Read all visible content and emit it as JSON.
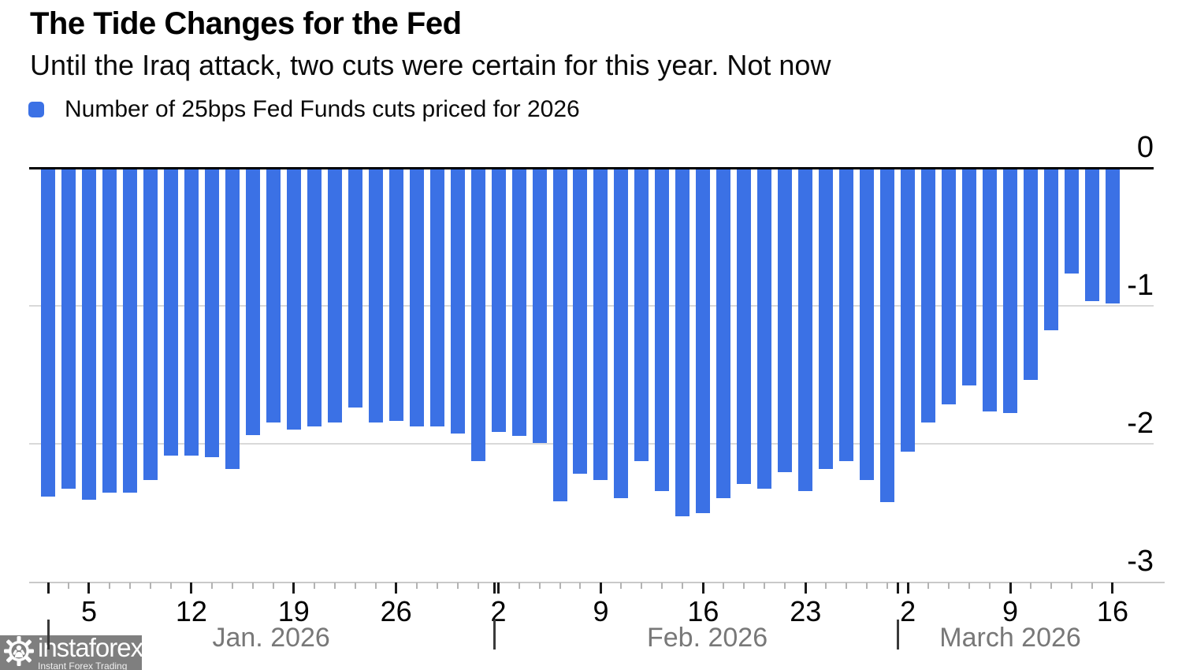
{
  "header": {
    "title": "The Tide Changes for the Fed",
    "subtitle": "Until the Iraq attack, two cuts were certain for this year. Not now",
    "legend_label": "Number of 25bps Fed Funds cuts priced for 2026"
  },
  "colors": {
    "bar": "#3b71e5",
    "zero_line": "#000000",
    "gridline": "#d9d9d9",
    "bottom_axis": "#c9c9c9",
    "month_text": "#787878",
    "logo_bg": "#7f7f7f"
  },
  "chart_data": {
    "type": "bar",
    "title": "The Tide Changes for the Fed",
    "subtitle": "Until the Iraq attack, two cuts were certain for this year. Not now",
    "series_name": "Number of 25bps Fed Funds cuts priced for 2026",
    "ylabel": "",
    "xlabel": "",
    "ylim": [
      -3,
      0
    ],
    "grid": "horizontal",
    "yticks": [
      0,
      -1,
      -2,
      -3
    ],
    "x": [
      "Jan 1",
      "Jan 2",
      "Jan 5",
      "Jan 6",
      "Jan 7",
      "Jan 8",
      "Jan 9",
      "Jan 12",
      "Jan 13",
      "Jan 14",
      "Jan 15",
      "Jan 16",
      "Jan 19",
      "Jan 20",
      "Jan 21",
      "Jan 22",
      "Jan 23",
      "Jan 26",
      "Jan 27",
      "Jan 28",
      "Jan 29",
      "Jan 30",
      "Feb 2",
      "Feb 3",
      "Feb 4",
      "Feb 5",
      "Feb 6",
      "Feb 9",
      "Feb 10",
      "Feb 11",
      "Feb 12",
      "Feb 13",
      "Feb 16",
      "Feb 17",
      "Feb 18",
      "Feb 19",
      "Feb 20",
      "Feb 23",
      "Feb 24",
      "Feb 25",
      "Feb 26",
      "Feb 27",
      "Mar 2",
      "Mar 3",
      "Mar 4",
      "Mar 5",
      "Mar 6",
      "Mar 9",
      "Mar 10",
      "Mar 11",
      "Mar 12",
      "Mar 13",
      "Mar 16"
    ],
    "values": [
      -2.39,
      -2.33,
      -2.41,
      -2.36,
      -2.36,
      -2.27,
      -2.09,
      -2.09,
      -2.1,
      -2.19,
      -1.94,
      -1.85,
      -1.9,
      -1.88,
      -1.85,
      -1.74,
      -1.85,
      -1.84,
      -1.88,
      -1.88,
      -1.93,
      -2.13,
      -1.92,
      -1.95,
      -2.0,
      -2.42,
      -2.22,
      -2.27,
      -2.4,
      -2.13,
      -2.35,
      -2.53,
      -2.51,
      -2.4,
      -2.3,
      -2.33,
      -2.21,
      -2.35,
      -2.19,
      -2.13,
      -2.27,
      -2.43,
      -2.06,
      -1.85,
      -1.72,
      -1.58,
      -1.77,
      -1.78,
      -1.54,
      -1.18,
      -0.77,
      -0.97,
      -0.99
    ],
    "xticks": [
      {
        "label": "5",
        "day_index": 2
      },
      {
        "label": "12",
        "day_index": 7
      },
      {
        "label": "19",
        "day_index": 12
      },
      {
        "label": "26",
        "day_index": 17
      },
      {
        "label": "2",
        "day_index": 22
      },
      {
        "label": "9",
        "day_index": 27
      },
      {
        "label": "16",
        "day_index": 32
      },
      {
        "label": "23",
        "day_index": 37
      },
      {
        "label": "2",
        "day_index": 42
      },
      {
        "label": "9",
        "day_index": 47
      },
      {
        "label": "16",
        "day_index": 52
      }
    ],
    "months": [
      {
        "label": "Jan. 2026",
        "sep_index": 0,
        "center_index": 10.9
      },
      {
        "label": "Feb. 2026",
        "sep_index": 21.8,
        "center_index": 32.2
      },
      {
        "label": "March 2026",
        "sep_index": 41.5,
        "center_index": 47.0
      }
    ],
    "legend_position": "top-left"
  },
  "logo": {
    "name": "instaforex",
    "tagline": "Instant Forex Trading"
  }
}
